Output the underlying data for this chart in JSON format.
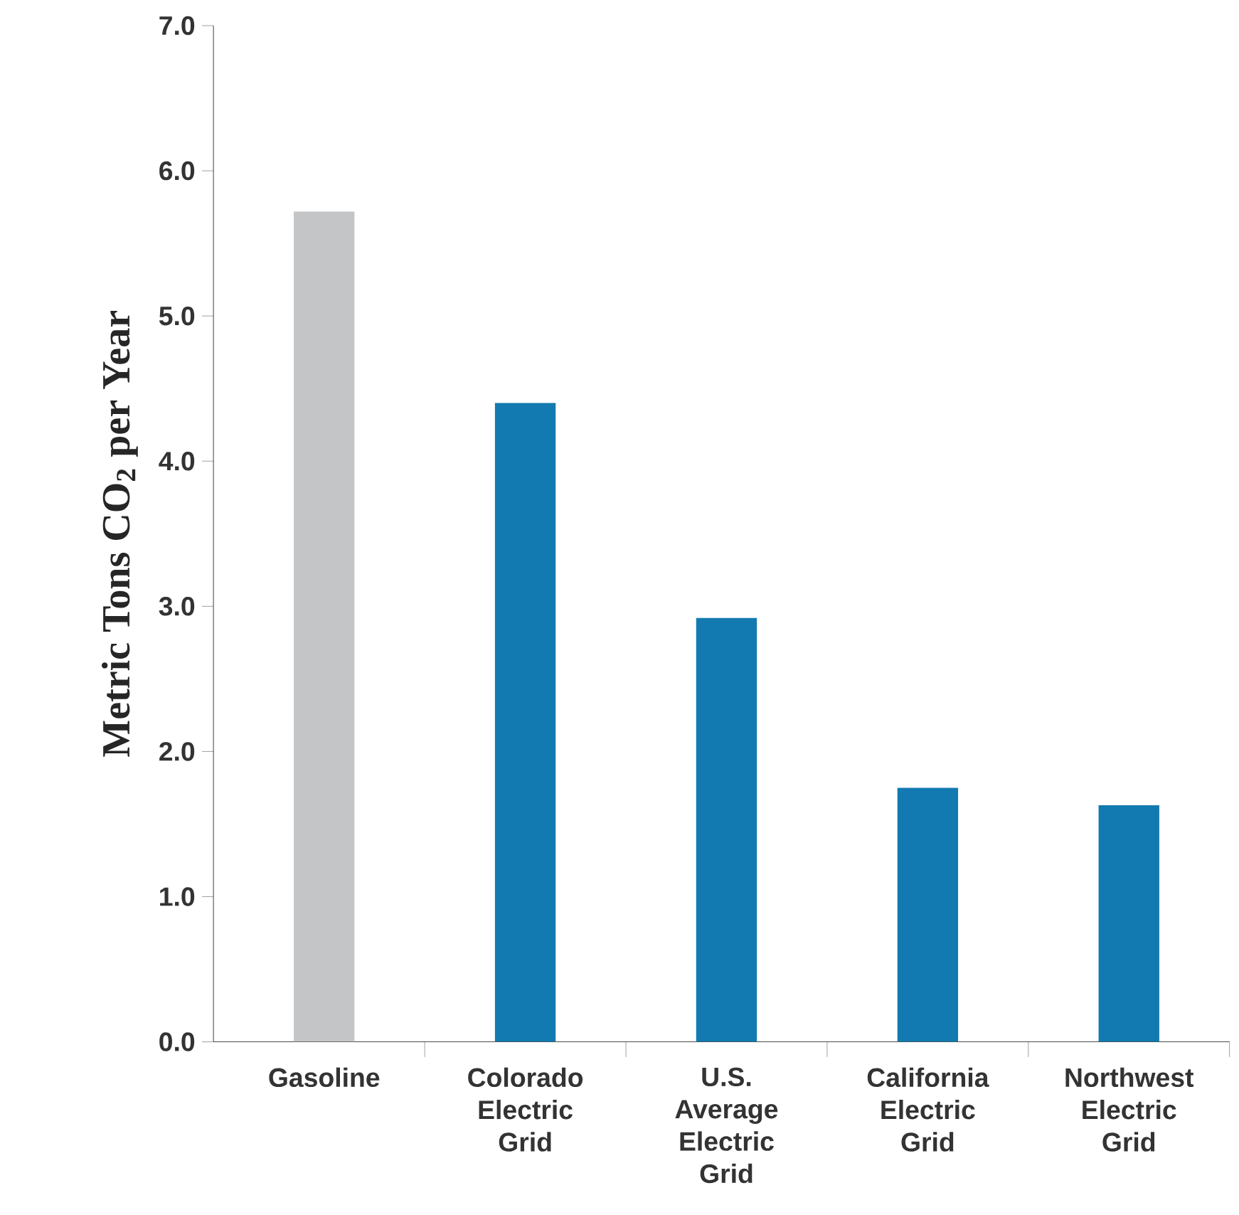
{
  "chart_data": {
    "type": "bar",
    "ylabel": "Metric Tons CO$_{2}$ per Year",
    "categories": [
      "Gasoline",
      "Colorado Electric Grid",
      "U.S. Average Electric Grid",
      "California Electric Grid",
      "Northwest Electric Grid"
    ],
    "values": [
      5.72,
      4.4,
      2.92,
      1.75,
      1.63
    ],
    "colors": [
      "#c4c5c7",
      "#127ab0",
      "#127ab0",
      "#127ab0",
      "#127ab0"
    ],
    "ylim": [
      0,
      7
    ],
    "yticks": [
      {
        "value": 0,
        "label": "0.0"
      },
      {
        "value": 1,
        "label": "1.0"
      },
      {
        "value": 2,
        "label": "2.0"
      },
      {
        "value": 3,
        "label": "3.0"
      },
      {
        "value": 4,
        "label": "4.0"
      },
      {
        "value": 5,
        "label": "5.0"
      },
      {
        "value": 6,
        "label": "6.0"
      },
      {
        "value": 7,
        "label": "7.0"
      }
    ],
    "grid": false
  }
}
